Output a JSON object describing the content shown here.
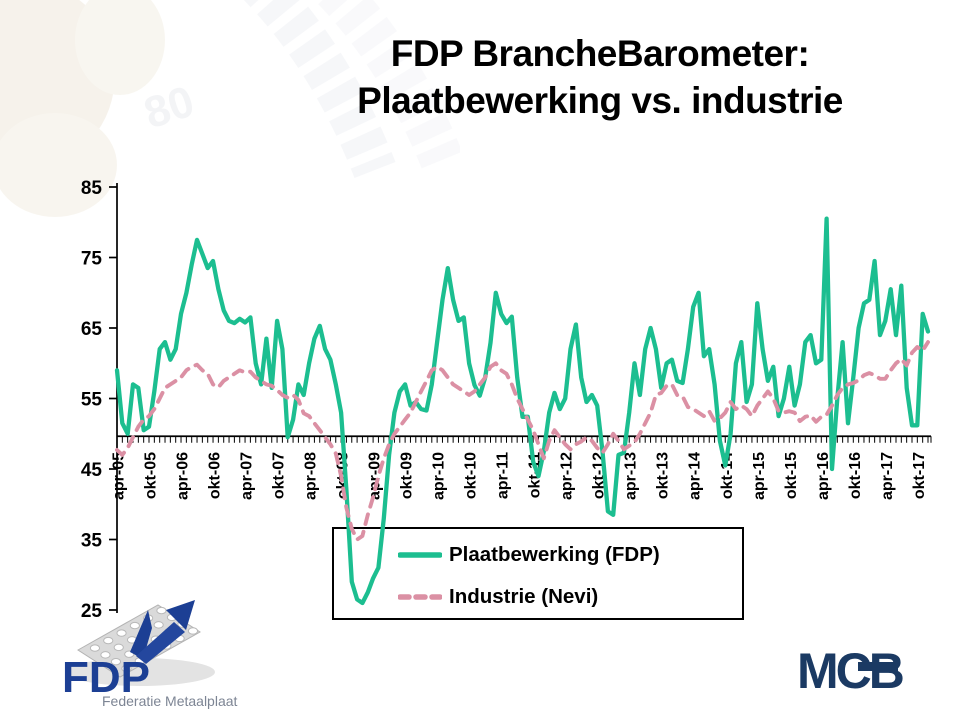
{
  "slide": {
    "title_line1": "FDP BrancheBarometer:",
    "title_line2": "Plaatbewerking vs. industrie"
  },
  "watermark": {
    "text": "80"
  },
  "legend": {
    "items": [
      {
        "label": "Plaatbewerking (FDP)",
        "style": "solid",
        "color": "#1CBE90"
      },
      {
        "label": "Industrie (Nevi)",
        "style": "dashed",
        "color": "#DB90A4"
      }
    ]
  },
  "logos": {
    "fdp": {
      "name": "FDP",
      "tagline": "Federatie Metaalplaat",
      "color": "#1C3F94",
      "tagline_color": "#7d8594"
    },
    "mcb": {
      "name": "MCB",
      "color": "#1B3A63"
    }
  },
  "chart_data": {
    "type": "line",
    "title": "",
    "xlabel": "",
    "ylabel": "",
    "x_start": "apr-05",
    "x_end": "dec-17",
    "frequency": "monthly",
    "x_tick_labels": [
      "apr-05",
      "okt-05",
      "apr-06",
      "okt-06",
      "apr-07",
      "okt-07",
      "apr-08",
      "okt-08",
      "apr-09",
      "okt-09",
      "apr-10",
      "okt-10",
      "apr-11",
      "okt-11",
      "apr-12",
      "okt-12",
      "apr-13",
      "okt-13",
      "apr-14",
      "okt-14",
      "apr-15",
      "okt-15",
      "apr-16",
      "okt-16",
      "apr-17",
      "okt-17"
    ],
    "y_ticks": [
      85,
      75,
      65,
      55,
      45,
      35,
      25
    ],
    "ylim": [
      25,
      85
    ],
    "x_axis_crossing_value": 50,
    "grid": false,
    "legend_position": "bottom-center",
    "series": [
      {
        "name": "Plaatbewerking (FDP)",
        "color": "#1CBE90",
        "style": "solid",
        "values": [
          59,
          51.5,
          50,
          57,
          56.5,
          50.5,
          51,
          56,
          62,
          63,
          60.5,
          62,
          67,
          70,
          74,
          77.5,
          75.5,
          73.5,
          74.5,
          70.5,
          67.5,
          66,
          65.7,
          66.3,
          65.8,
          66.5,
          60,
          57,
          63.5,
          56.5,
          66,
          62,
          49.5,
          52,
          57,
          55.5,
          60,
          63.5,
          65.3,
          62,
          60.5,
          57,
          53,
          42,
          29,
          26.5,
          26,
          27.5,
          29.5,
          31,
          38,
          47,
          53,
          56,
          57,
          54,
          54.5,
          53.5,
          53.3,
          57,
          63,
          69,
          73.5,
          69,
          66,
          66.5,
          60,
          56.9,
          55.4,
          58,
          62.9,
          70,
          67,
          65.7,
          66.6,
          58,
          52.4,
          52.4,
          46,
          44,
          47.5,
          53,
          55.8,
          53.5,
          55,
          62,
          65.5,
          58,
          54.5,
          55.5,
          54,
          47.5,
          39,
          38.5,
          47,
          47.3,
          53,
          60,
          55.5,
          62,
          65,
          62,
          56.5,
          60,
          60.5,
          57.5,
          57.2,
          62,
          68,
          70,
          61,
          62,
          57,
          49,
          45.5,
          50,
          60,
          63,
          54.5,
          57,
          68.5,
          62,
          57.5,
          59.5,
          52.5,
          55,
          59.5,
          54,
          57,
          63,
          64,
          60,
          60.5,
          80.5,
          45,
          55,
          63,
          51.5,
          58,
          65,
          68.5,
          69,
          74.5,
          64,
          66,
          70.5,
          64,
          71,
          56.5,
          51.2,
          51.2,
          67,
          64.5
        ]
      },
      {
        "name": "Industrie (Nevi)",
        "color": "#DB90A4",
        "style": "dashed",
        "values": [
          47.7,
          47,
          48,
          49.5,
          51,
          52,
          52.5,
          53.5,
          55,
          56.5,
          57,
          57.5,
          58,
          59,
          59.5,
          59.8,
          59,
          58.5,
          57,
          56.6,
          57.5,
          58,
          58.5,
          59,
          58.7,
          58.8,
          58,
          57.5,
          57,
          56.8,
          56.2,
          55.5,
          55.1,
          55.5,
          54.8,
          52.9,
          52.5,
          51.5,
          50.5,
          49.5,
          48.5,
          47.2,
          44,
          39.5,
          36.5,
          35,
          35.5,
          38.5,
          41,
          44,
          46.5,
          48.5,
          50,
          51,
          52,
          53,
          54.5,
          56,
          57.5,
          59,
          59.5,
          59,
          58,
          57,
          56.5,
          56,
          55.5,
          56,
          57,
          58,
          59.5,
          60,
          59,
          58.5,
          57,
          55,
          53.5,
          52,
          50.5,
          48.5,
          46.5,
          49,
          50.5,
          49.5,
          48.5,
          47.8,
          48.5,
          48.9,
          49.5,
          49,
          48,
          47.3,
          48.5,
          50,
          49,
          47.8,
          48.3,
          48.8,
          50,
          51.5,
          53,
          55.5,
          55.8,
          56.8,
          57,
          55.5,
          55.3,
          53.8,
          53.5,
          53,
          52.5,
          53.2,
          51.8,
          52.2,
          53,
          54.5,
          53.5,
          54,
          53.5,
          52.5,
          54,
          55,
          56,
          55,
          53.2,
          53,
          53.2,
          53,
          51.8,
          52.4,
          52.6,
          51.7,
          52.4,
          52.7,
          54,
          55.5,
          56.5,
          57,
          57.2,
          57.6,
          58.3,
          58.6,
          58.3,
          57.8,
          57.8,
          59,
          60,
          60.6,
          59.7,
          61.5,
          62.3,
          61.8,
          63
        ]
      }
    ]
  }
}
